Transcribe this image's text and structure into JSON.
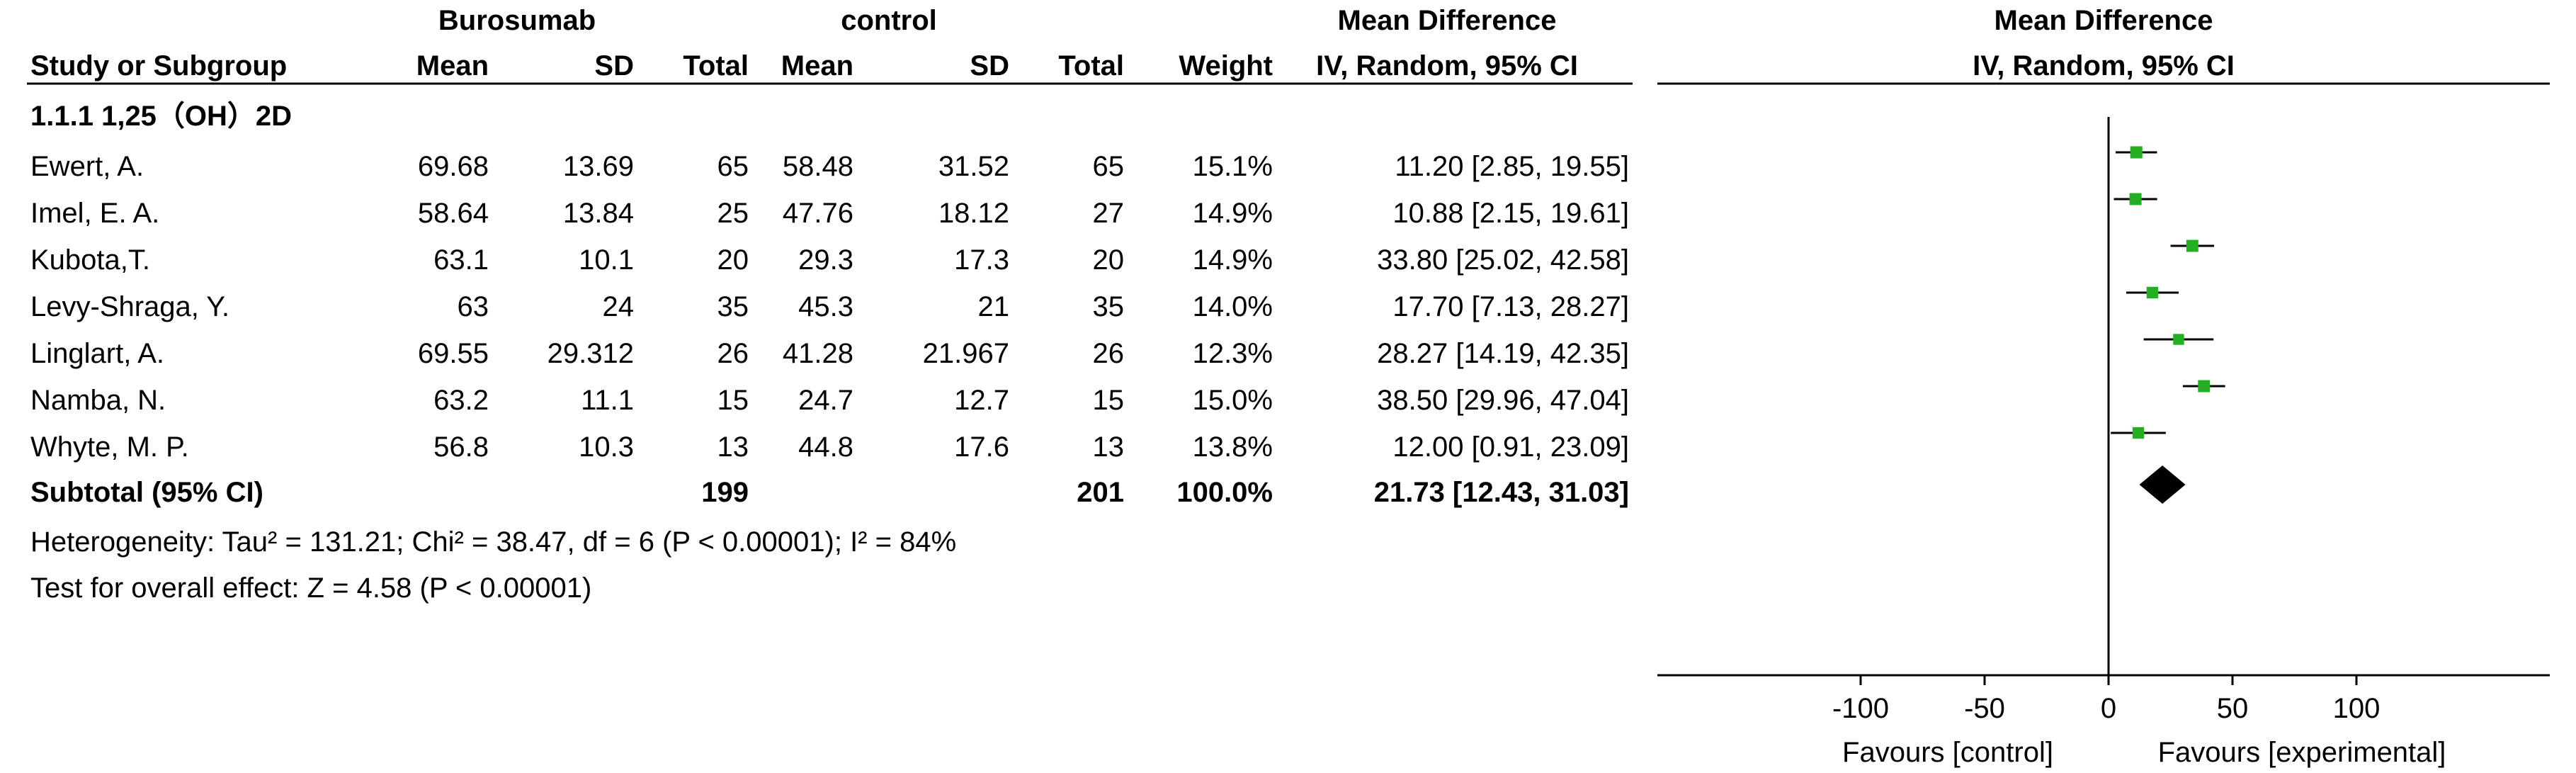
{
  "table": {
    "group_headers": {
      "experimental": "Burosumab",
      "control": "control",
      "effect": "Mean Difference"
    },
    "columns": [
      "Study or Subgroup",
      "Mean",
      "SD",
      "Total",
      "Mean",
      "SD",
      "Total",
      "Weight",
      "IV, Random, 95% CI"
    ],
    "subgroup_title": "1.1.1 1,25（OH）2D",
    "rows": [
      {
        "study": "Ewert, A.",
        "exp_mean": "69.68",
        "exp_sd": "13.69",
        "exp_total": "65",
        "ctl_mean": "58.48",
        "ctl_sd": "31.52",
        "ctl_total": "65",
        "weight": "15.1%",
        "ci": "11.20 [2.85, 19.55]"
      },
      {
        "study": "Imel, E. A.",
        "exp_mean": "58.64",
        "exp_sd": "13.84",
        "exp_total": "25",
        "ctl_mean": "47.76",
        "ctl_sd": "18.12",
        "ctl_total": "27",
        "weight": "14.9%",
        "ci": "10.88 [2.15, 19.61]"
      },
      {
        "study": "Kubota,T.",
        "exp_mean": "63.1",
        "exp_sd": "10.1",
        "exp_total": "20",
        "ctl_mean": "29.3",
        "ctl_sd": "17.3",
        "ctl_total": "20",
        "weight": "14.9%",
        "ci": "33.80 [25.02, 42.58]"
      },
      {
        "study": "Levy-Shraga, Y.",
        "exp_mean": "63",
        "exp_sd": "24",
        "exp_total": "35",
        "ctl_mean": "45.3",
        "ctl_sd": "21",
        "ctl_total": "35",
        "weight": "14.0%",
        "ci": "17.70 [7.13, 28.27]"
      },
      {
        "study": "Linglart, A.",
        "exp_mean": "69.55",
        "exp_sd": "29.312",
        "exp_total": "26",
        "ctl_mean": "41.28",
        "ctl_sd": "21.967",
        "ctl_total": "26",
        "weight": "12.3%",
        "ci": "28.27 [14.19, 42.35]"
      },
      {
        "study": "Namba, N.",
        "exp_mean": "63.2",
        "exp_sd": "11.1",
        "exp_total": "15",
        "ctl_mean": "24.7",
        "ctl_sd": "12.7",
        "ctl_total": "15",
        "weight": "15.0%",
        "ci": "38.50 [29.96, 47.04]"
      },
      {
        "study": "Whyte, M. P.",
        "exp_mean": "56.8",
        "exp_sd": "10.3",
        "exp_total": "13",
        "ctl_mean": "44.8",
        "ctl_sd": "17.6",
        "ctl_total": "13",
        "weight": "13.8%",
        "ci": "12.00 [0.91, 23.09]"
      }
    ],
    "subtotal": {
      "label": "Subtotal (95% CI)",
      "exp_total": "199",
      "ctl_total": "201",
      "weight": "100.0%",
      "ci": "21.73 [12.43, 31.03]"
    },
    "heterogeneity": "Heterogeneity: Tau² = 131.21; Chi² = 38.47, df = 6 (P < 0.00001); I² = 84%",
    "overall_effect": "Test for overall effect: Z = 4.58 (P < 0.00001)"
  },
  "plot": {
    "header": "Mean Difference",
    "subheader": "IV, Random, 95% CI",
    "favours_left": "Favours [control]",
    "favours_right": "Favours [experimental]"
  },
  "colors": {
    "study_square": "#22b022",
    "diamond": "#000000",
    "lines": "#000000"
  },
  "chart_data": {
    "type": "scatter",
    "x_range": [
      -100,
      100
    ],
    "ticks": [
      -100,
      -50,
      0,
      50,
      100
    ],
    "tick_labels": [
      "-100",
      "-50",
      "0",
      "50",
      "100"
    ],
    "points": [
      {
        "label": "Ewert, A.",
        "md": 11.2,
        "lo": 2.85,
        "hi": 19.55,
        "weight": 15.1
      },
      {
        "label": "Imel, E. A.",
        "md": 10.88,
        "lo": 2.15,
        "hi": 19.61,
        "weight": 14.9
      },
      {
        "label": "Kubota,T.",
        "md": 33.8,
        "lo": 25.02,
        "hi": 42.58,
        "weight": 14.9
      },
      {
        "label": "Levy-Shraga, Y.",
        "md": 17.7,
        "lo": 7.13,
        "hi": 28.27,
        "weight": 14.0
      },
      {
        "label": "Linglart, A.",
        "md": 28.27,
        "lo": 14.19,
        "hi": 42.35,
        "weight": 12.3
      },
      {
        "label": "Namba, N.",
        "md": 38.5,
        "lo": 29.96,
        "hi": 47.04,
        "weight": 15.0
      },
      {
        "label": "Whyte, M. P.",
        "md": 12.0,
        "lo": 0.91,
        "hi": 23.09,
        "weight": 13.8
      }
    ],
    "summary": {
      "label": "Subtotal (95% CI)",
      "md": 21.73,
      "lo": 12.43,
      "hi": 31.03
    }
  }
}
